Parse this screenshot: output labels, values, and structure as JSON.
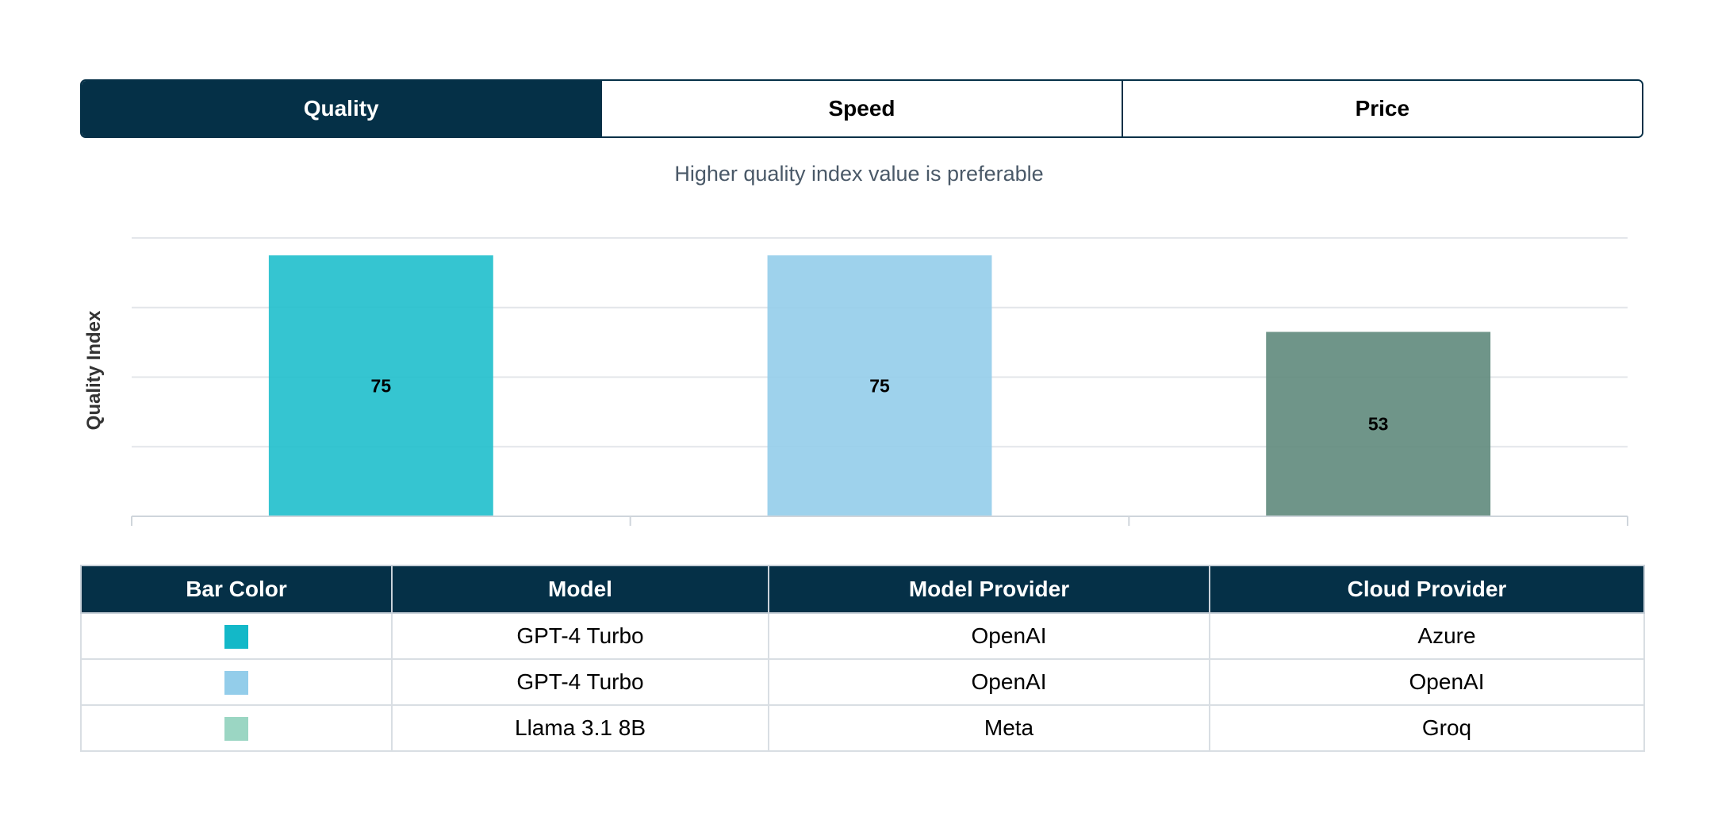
{
  "tabs": [
    {
      "label": "Quality",
      "active": true
    },
    {
      "label": "Speed",
      "active": false
    },
    {
      "label": "Price",
      "active": false
    }
  ],
  "subtitle": "Higher quality index value is preferable",
  "chart_data": {
    "type": "bar",
    "ylabel": "Quality Index",
    "ylim": [
      0,
      80
    ],
    "grid": true,
    "categories": [
      "GPT-4 Turbo (Azure)",
      "GPT-4 Turbo (OpenAI)",
      "Llama 3.1 8B (Groq)"
    ],
    "values": [
      75,
      75,
      53
    ],
    "colors": [
      "#1fbfcc",
      "#93cdea",
      "#5f8a7c"
    ],
    "data_labels": [
      "75",
      "75",
      "53"
    ]
  },
  "table": {
    "headers": [
      "Bar Color",
      "Model",
      "Model Provider",
      "Cloud Provider"
    ],
    "rows": [
      {
        "color": "#13b8c8",
        "model": "GPT-4 Turbo",
        "model_provider": "OpenAI",
        "cloud_provider": "Azure"
      },
      {
        "color": "#93cdea",
        "model": "GPT-4 Turbo",
        "model_provider": "OpenAI",
        "cloud_provider": "OpenAI"
      },
      {
        "color": "#9bd6c3",
        "model": "Llama 3.1 8B",
        "model_provider": "Meta",
        "cloud_provider": "Groq"
      }
    ]
  }
}
